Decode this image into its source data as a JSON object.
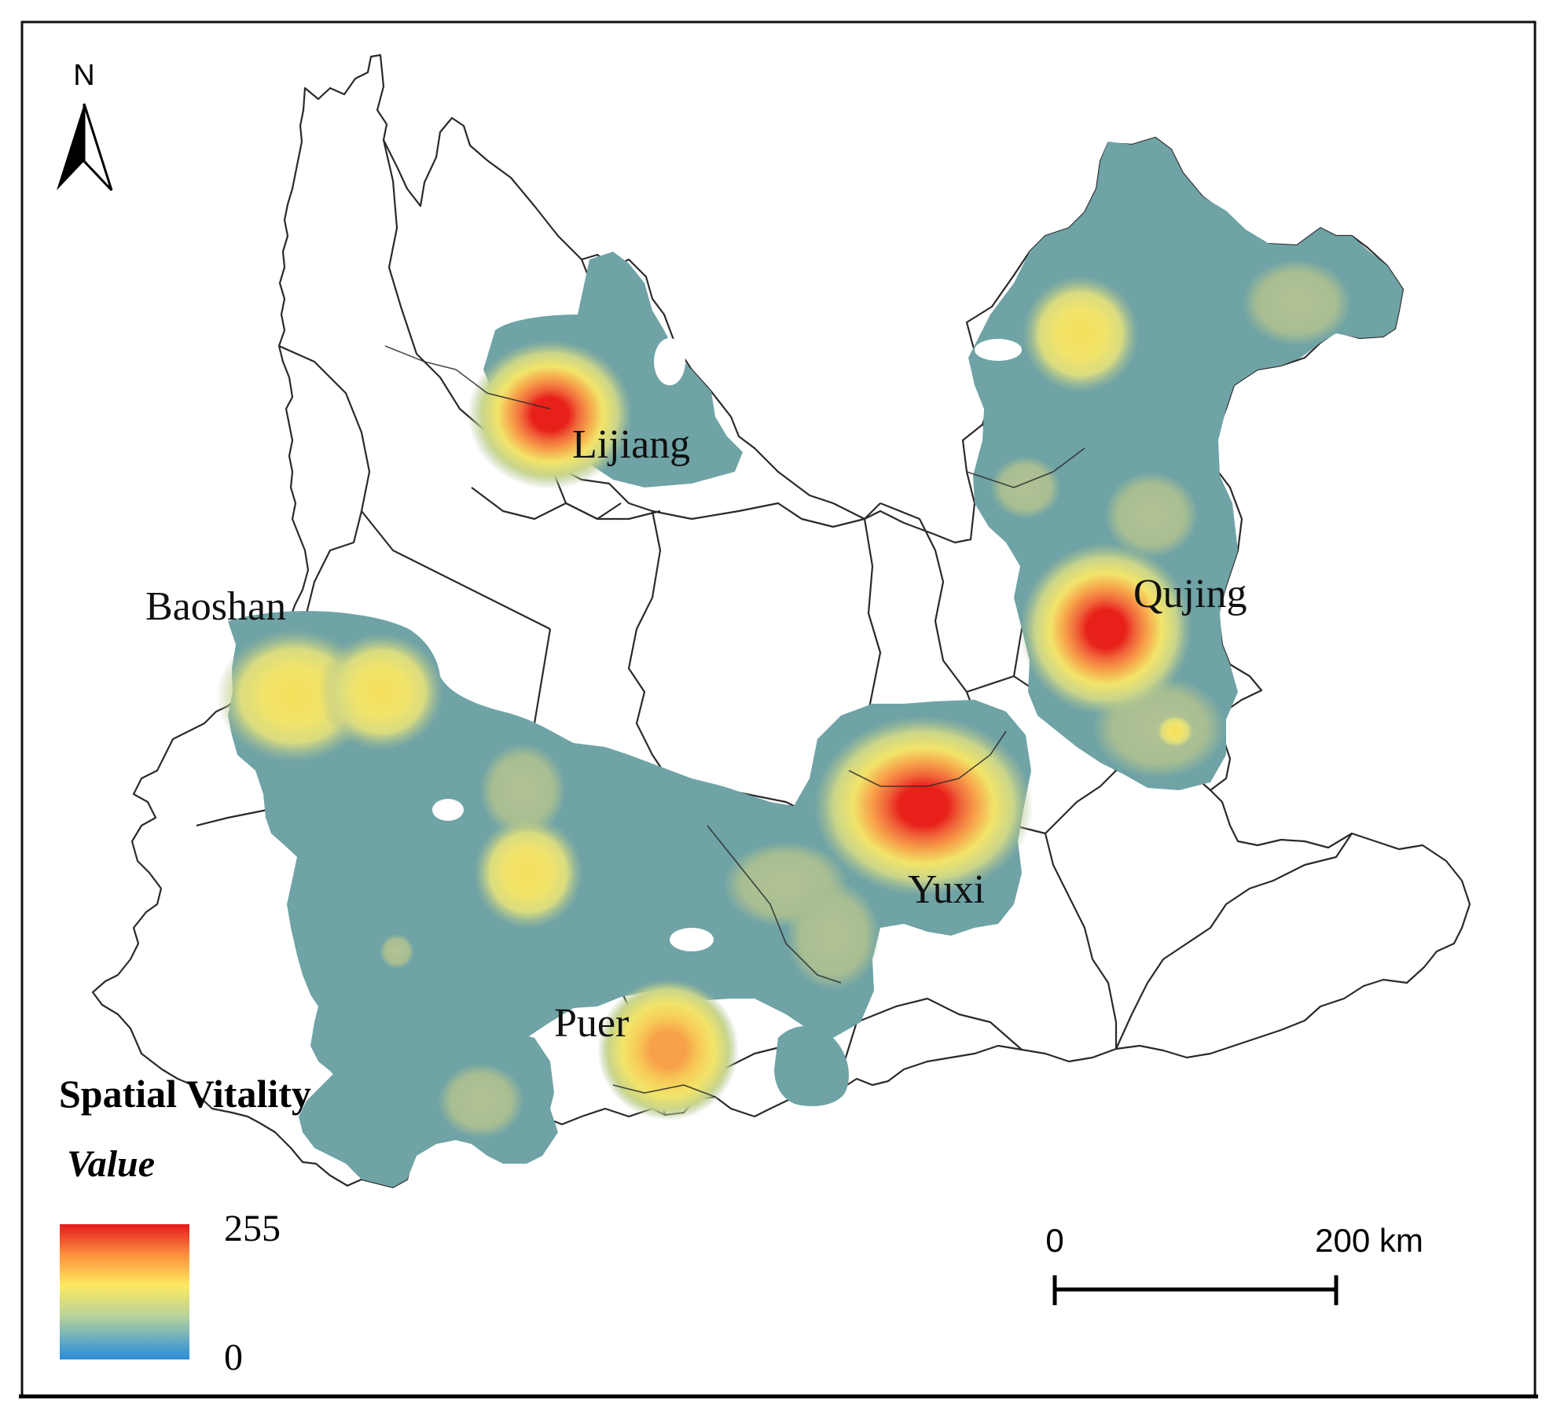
{
  "north_arrow": {
    "label": "N"
  },
  "city_labels": [
    {
      "id": "lijiang",
      "text": "Lijiang"
    },
    {
      "id": "baoshan",
      "text": "Baoshan"
    },
    {
      "id": "qujing",
      "text": "Qujing"
    },
    {
      "id": "yuxi",
      "text": "Yuxi"
    },
    {
      "id": "puer",
      "text": "Puer"
    }
  ],
  "legend": {
    "title": "Spatial Vitality",
    "subtitle": "Value",
    "max_label": "255",
    "min_label": "0",
    "ramp_colors": [
      "#e31a1c",
      "#fc8d3c",
      "#fee95f",
      "#b7d39a",
      "#5aa6c8",
      "#2b8cd6"
    ]
  },
  "scale_bar": {
    "start_label": "0",
    "end_label": "200 km"
  },
  "colors": {
    "base_teal": "#6fa3a6",
    "low_green": "#a8be92",
    "mid_yellow": "#f2e46a",
    "orange": "#f7a24a",
    "high_red": "#e8201a",
    "boundary": "#2a2a2a"
  }
}
